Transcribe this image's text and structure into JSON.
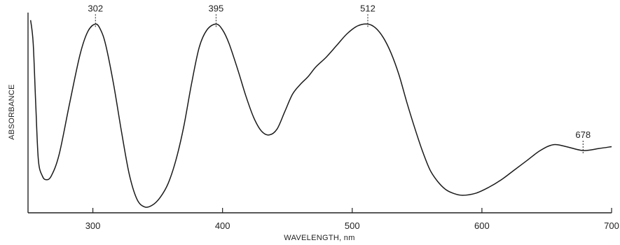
{
  "chart_data": {
    "type": "line",
    "title": "",
    "xlabel": "WAVELENGTH, nm",
    "ylabel": "ABSORBANCE",
    "xlim": [
      250,
      700
    ],
    "ylim": [
      0,
      1
    ],
    "x_ticks": [
      300,
      400,
      500,
      600,
      700
    ],
    "x_tick_labels": [
      "300",
      "400",
      "500",
      "600",
      "700"
    ],
    "grid": false,
    "legend": "none",
    "series": [
      {
        "color": "#1a1a1a",
        "x": [
          252,
          254,
          256,
          258,
          261,
          264,
          268,
          274,
          282,
          290,
          296,
          302,
          306,
          310,
          316,
          322,
          328,
          334,
          340,
          346,
          352,
          358,
          364,
          370,
          376,
          382,
          388,
          395,
          400,
          405,
          412,
          418,
          424,
          430,
          436,
          442,
          448,
          454,
          460,
          466,
          472,
          480,
          488,
          496,
          504,
          512,
          518,
          524,
          530,
          536,
          542,
          548,
          554,
          560,
          566,
          572,
          578,
          585,
          595,
          605,
          615,
          625,
          635,
          645,
          655,
          665,
          678,
          690,
          700
        ],
        "y": [
          0.99,
          0.87,
          0.55,
          0.27,
          0.19,
          0.17,
          0.19,
          0.3,
          0.56,
          0.81,
          0.93,
          0.97,
          0.94,
          0.86,
          0.66,
          0.42,
          0.2,
          0.07,
          0.03,
          0.04,
          0.08,
          0.15,
          0.27,
          0.44,
          0.66,
          0.85,
          0.94,
          0.97,
          0.94,
          0.87,
          0.73,
          0.6,
          0.49,
          0.42,
          0.4,
          0.43,
          0.52,
          0.61,
          0.66,
          0.7,
          0.75,
          0.8,
          0.86,
          0.92,
          0.96,
          0.97,
          0.95,
          0.9,
          0.82,
          0.71,
          0.57,
          0.44,
          0.32,
          0.22,
          0.16,
          0.12,
          0.1,
          0.09,
          0.1,
          0.13,
          0.17,
          0.22,
          0.27,
          0.32,
          0.35,
          0.34,
          0.32,
          0.33,
          0.34
        ]
      }
    ],
    "annotations": [
      {
        "label": "302",
        "x": 302,
        "y": 0.97
      },
      {
        "label": "395",
        "x": 395,
        "y": 0.97
      },
      {
        "label": "512",
        "x": 512,
        "y": 0.97
      },
      {
        "label": "678",
        "x": 678,
        "y": 0.32
      }
    ]
  }
}
